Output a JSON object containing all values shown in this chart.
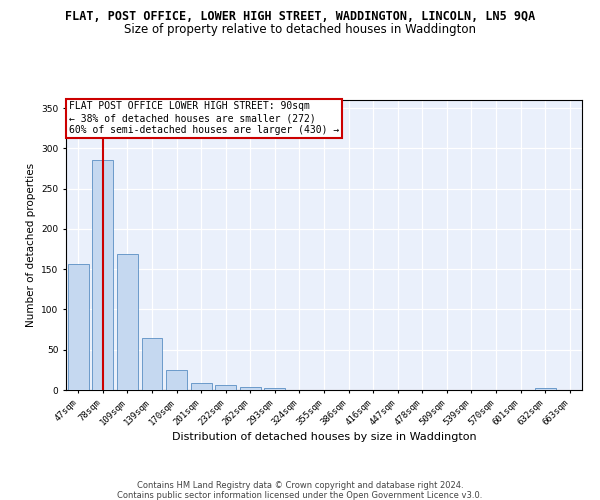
{
  "title": "FLAT, POST OFFICE, LOWER HIGH STREET, WADDINGTON, LINCOLN, LN5 9QA",
  "subtitle": "Size of property relative to detached houses in Waddington",
  "xlabel": "Distribution of detached houses by size in Waddington",
  "ylabel": "Number of detached properties",
  "categories": [
    "47sqm",
    "78sqm",
    "109sqm",
    "139sqm",
    "170sqm",
    "201sqm",
    "232sqm",
    "262sqm",
    "293sqm",
    "324sqm",
    "355sqm",
    "386sqm",
    "416sqm",
    "447sqm",
    "478sqm",
    "509sqm",
    "539sqm",
    "570sqm",
    "601sqm",
    "632sqm",
    "663sqm"
  ],
  "values": [
    156,
    286,
    169,
    65,
    25,
    9,
    6,
    4,
    2,
    0,
    0,
    0,
    0,
    0,
    0,
    0,
    0,
    0,
    0,
    3,
    0
  ],
  "bar_color": "#c5d8f0",
  "bar_edge_color": "#5a8fc3",
  "vline_x_index": 1,
  "vline_color": "#cc0000",
  "annotation_line1": "FLAT POST OFFICE LOWER HIGH STREET: 90sqm",
  "annotation_line2": "← 38% of detached houses are smaller (272)",
  "annotation_line3": "60% of semi-detached houses are larger (430) →",
  "annotation_box_color": "#ffffff",
  "annotation_box_edge": "#cc0000",
  "ylim": [
    0,
    360
  ],
  "yticks": [
    0,
    50,
    100,
    150,
    200,
    250,
    300,
    350
  ],
  "footer1": "Contains HM Land Registry data © Crown copyright and database right 2024.",
  "footer2": "Contains public sector information licensed under the Open Government Licence v3.0.",
  "bg_color": "#eaf0fb",
  "title_fontsize": 8.5,
  "subtitle_fontsize": 8.5,
  "annotation_fontsize": 7.0,
  "ylabel_fontsize": 7.5,
  "xlabel_fontsize": 8.0,
  "tick_fontsize": 6.5
}
